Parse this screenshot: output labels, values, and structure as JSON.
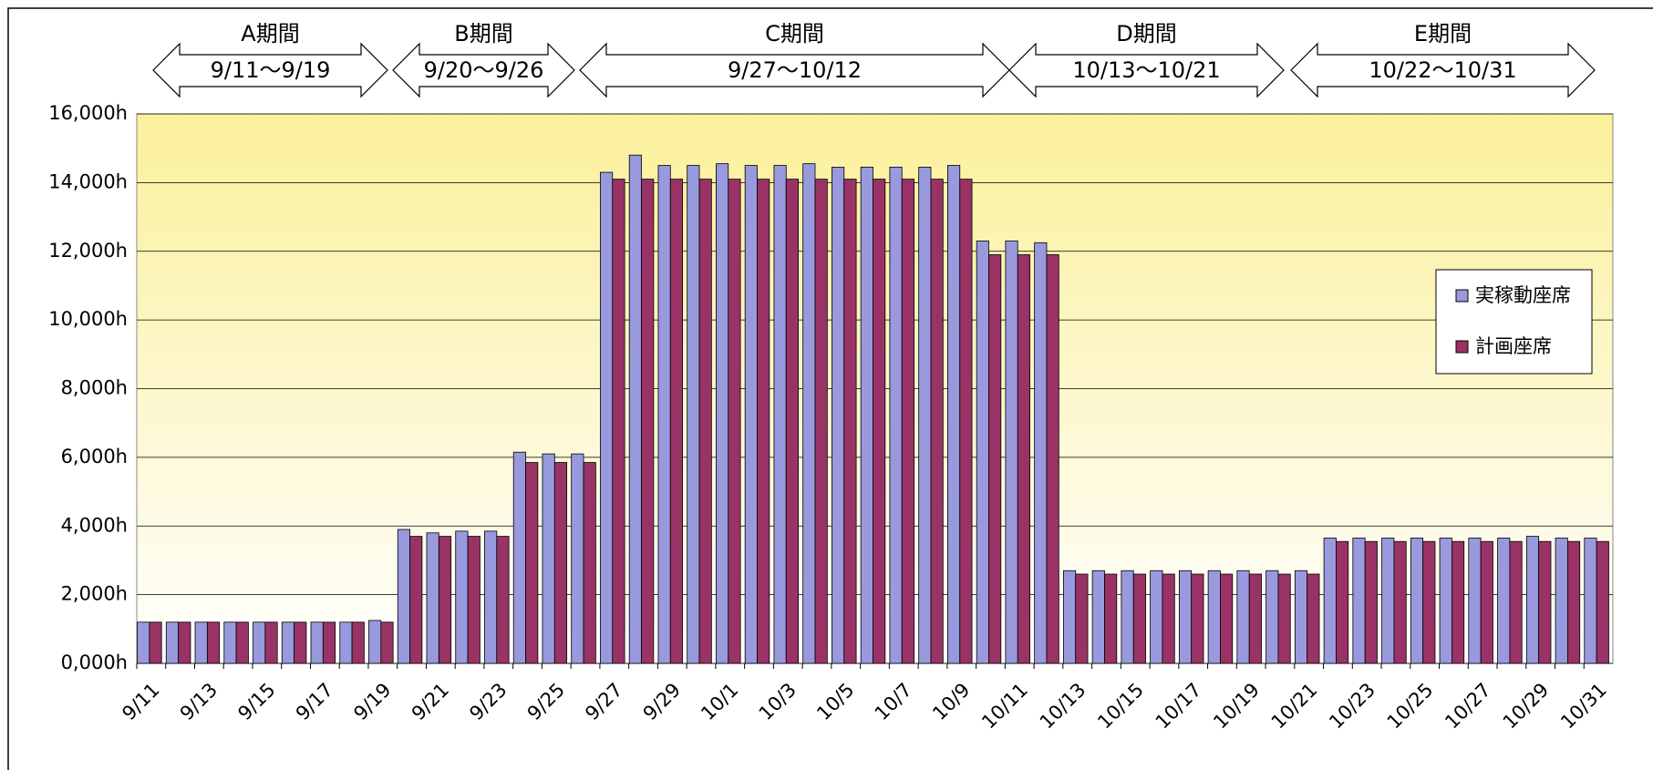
{
  "chart_data": {
    "type": "bar",
    "categories": [
      "9/11",
      null,
      "9/13",
      null,
      "9/15",
      null,
      "9/17",
      null,
      "9/19",
      null,
      "9/21",
      null,
      "9/23",
      null,
      "9/25",
      null,
      "9/27",
      null,
      "9/29",
      null,
      "10/1",
      null,
      "10/3",
      null,
      "10/5",
      null,
      "10/7",
      null,
      "10/9",
      null,
      "10/11",
      null,
      "10/13",
      null,
      "10/15",
      null,
      "10/17",
      null,
      "10/19",
      null,
      "10/21",
      null,
      "10/23",
      null,
      "10/25",
      null,
      "10/27",
      null,
      "10/29",
      null,
      "10/31"
    ],
    "series": [
      {
        "name": "実稼動座席",
        "color": "#9999dd",
        "values": [
          1200,
          1200,
          1200,
          1200,
          1200,
          1200,
          1200,
          1200,
          1250,
          3900,
          3800,
          3850,
          3850,
          6150,
          6100,
          6100,
          14300,
          14800,
          14500,
          14500,
          14550,
          14500,
          14500,
          14550,
          14450,
          14450,
          14450,
          14450,
          14500,
          12300,
          12300,
          12250,
          2700,
          2700,
          2700,
          2700,
          2700,
          2700,
          2700,
          2700,
          2700,
          3650,
          3650,
          3650,
          3650,
          3650,
          3650,
          3650,
          3700,
          3650,
          3650
        ]
      },
      {
        "name": "計画座席",
        "color": "#993366",
        "values": [
          1200,
          1200,
          1200,
          1200,
          1200,
          1200,
          1200,
          1200,
          1200,
          3700,
          3700,
          3700,
          3700,
          5850,
          5850,
          5850,
          14100,
          14100,
          14100,
          14100,
          14100,
          14100,
          14100,
          14100,
          14100,
          14100,
          14100,
          14100,
          14100,
          11900,
          11900,
          11900,
          2600,
          2600,
          2600,
          2600,
          2600,
          2600,
          2600,
          2600,
          2600,
          3550,
          3550,
          3550,
          3550,
          3550,
          3550,
          3550,
          3550,
          3550,
          3550
        ]
      }
    ],
    "ylim": [
      0,
      16000
    ],
    "yticks": [
      {
        "value": 0,
        "label": "0,000h"
      },
      {
        "value": 2000,
        "label": "2,000h"
      },
      {
        "value": 4000,
        "label": "4,000h"
      },
      {
        "value": 6000,
        "label": "6,000h"
      },
      {
        "value": 8000,
        "label": "8,000h"
      },
      {
        "value": 10000,
        "label": "10,000h"
      },
      {
        "value": 12000,
        "label": "12,000h"
      },
      {
        "value": 14000,
        "label": "14,000h"
      },
      {
        "value": 16000,
        "label": "16,000h"
      }
    ],
    "grid": true,
    "legend": "right",
    "periods": [
      {
        "name": "A期間",
        "range": "9/11～9/19"
      },
      {
        "name": "B期間",
        "range": "9/20～9/26"
      },
      {
        "name": "C期間",
        "range": "9/27～10/12"
      },
      {
        "name": "D期間",
        "range": "10/13～10/21"
      },
      {
        "name": "E期間",
        "range": "10/22～10/31"
      }
    ]
  }
}
